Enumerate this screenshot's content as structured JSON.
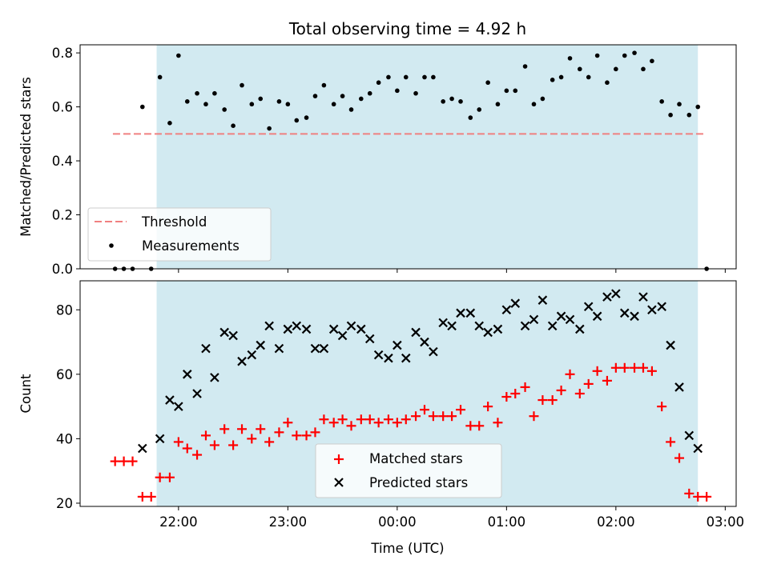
{
  "chart_data": {
    "title": "Total observing time = 4.92 h",
    "xlabel": "Time (UTC)",
    "x_ticks": [
      "22:00",
      "23:00",
      "00:00",
      "01:00",
      "02:00",
      "03:00"
    ],
    "x_tick_hours": [
      22,
      23,
      24,
      25,
      26,
      27
    ],
    "x_range_hours": [
      21.1,
      27.1
    ],
    "observing_window_hours": [
      21.8,
      26.75
    ],
    "colors": {
      "window": "#add8e6",
      "threshold": "#f08080",
      "measure": "#000000",
      "matched": "#ff0000",
      "predicted": "#000000"
    },
    "panels": [
      {
        "type": "scatter",
        "ylabel": "Matched/Predicted stars",
        "ylim": [
          0,
          0.83
        ],
        "y_ticks": [
          0.0,
          0.2,
          0.4,
          0.6,
          0.8
        ],
        "y_tick_labels": [
          "0.0",
          "0.2",
          "0.4",
          "0.6",
          "0.8"
        ],
        "threshold": {
          "name": "Threshold",
          "x": [
            21.4,
            26.8
          ],
          "y": 0.5
        },
        "series": [
          {
            "name": "Measurements",
            "x": [
              21.42,
              21.5,
              21.58,
              21.67,
              21.75,
              21.83,
              21.92,
              22.0,
              22.08,
              22.17,
              22.25,
              22.33,
              22.42,
              22.5,
              22.58,
              22.67,
              22.75,
              22.83,
              22.92,
              23.0,
              23.08,
              23.17,
              23.25,
              23.33,
              23.42,
              23.5,
              23.58,
              23.67,
              23.75,
              23.83,
              23.92,
              24.0,
              24.08,
              24.17,
              24.25,
              24.33,
              24.42,
              24.5,
              24.58,
              24.67,
              24.75,
              24.83,
              24.92,
              25.0,
              25.08,
              25.17,
              25.25,
              25.33,
              25.42,
              25.5,
              25.58,
              25.67,
              25.75,
              25.83,
              25.92,
              26.0,
              26.08,
              26.17,
              26.25,
              26.33,
              26.42,
              26.5,
              26.58,
              26.67,
              26.75,
              26.83
            ],
            "y": [
              0.0,
              0.0,
              0.0,
              0.6,
              0.0,
              0.71,
              0.54,
              0.79,
              0.62,
              0.65,
              0.61,
              0.65,
              0.59,
              0.53,
              0.68,
              0.61,
              0.63,
              0.52,
              0.62,
              0.61,
              0.55,
              0.56,
              0.64,
              0.68,
              0.61,
              0.64,
              0.59,
              0.63,
              0.65,
              0.69,
              0.71,
              0.66,
              0.71,
              0.65,
              0.71,
              0.71,
              0.62,
              0.63,
              0.62,
              0.56,
              0.59,
              0.69,
              0.61,
              0.66,
              0.66,
              0.75,
              0.61,
              0.63,
              0.7,
              0.71,
              0.78,
              0.74,
              0.71,
              0.79,
              0.69,
              0.74,
              0.79,
              0.8,
              0.74,
              0.77,
              0.62,
              0.57,
              0.61,
              0.57,
              0.6,
              0.0
            ]
          }
        ],
        "legend": "lower-left"
      },
      {
        "type": "scatter",
        "ylabel": "Count",
        "ylim": [
          19,
          89
        ],
        "y_ticks": [
          20,
          40,
          60,
          80
        ],
        "y_tick_labels": [
          "20",
          "40",
          "60",
          "80"
        ],
        "series": [
          {
            "name": "Matched stars",
            "marker": "plus",
            "x": [
              21.42,
              21.5,
              21.58,
              21.67,
              21.75,
              21.83,
              21.92,
              22.0,
              22.08,
              22.17,
              22.25,
              22.33,
              22.42,
              22.5,
              22.58,
              22.67,
              22.75,
              22.83,
              22.92,
              23.0,
              23.08,
              23.17,
              23.25,
              23.33,
              23.42,
              23.5,
              23.58,
              23.67,
              23.75,
              23.83,
              23.92,
              24.0,
              24.08,
              24.17,
              24.25,
              24.33,
              24.42,
              24.5,
              24.58,
              24.67,
              24.75,
              24.83,
              24.92,
              25.0,
              25.08,
              25.17,
              25.25,
              25.33,
              25.42,
              25.5,
              25.58,
              25.67,
              25.75,
              25.83,
              25.92,
              26.0,
              26.08,
              26.17,
              26.25,
              26.33,
              26.42,
              26.5,
              26.58,
              26.67,
              26.75,
              26.83
            ],
            "y": [
              33,
              33,
              33,
              22,
              22,
              28,
              28,
              39,
              37,
              35,
              41,
              38,
              43,
              38,
              43,
              40,
              43,
              39,
              42,
              45,
              41,
              41,
              42,
              46,
              45,
              46,
              44,
              46,
              46,
              45,
              46,
              45,
              46,
              47,
              49,
              47,
              47,
              47,
              49,
              44,
              44,
              50,
              45,
              53,
              54,
              56,
              47,
              52,
              52,
              55,
              60,
              54,
              57,
              61,
              58,
              62,
              62,
              62,
              62,
              61,
              50,
              39,
              34,
              23,
              22,
              22
            ]
          },
          {
            "name": "Predicted stars",
            "marker": "x",
            "x": [
              21.67,
              21.83,
              21.92,
              22.0,
              22.08,
              22.17,
              22.25,
              22.33,
              22.42,
              22.5,
              22.58,
              22.67,
              22.75,
              22.83,
              22.92,
              23.0,
              23.08,
              23.17,
              23.25,
              23.33,
              23.42,
              23.5,
              23.58,
              23.67,
              23.75,
              23.83,
              23.92,
              24.0,
              24.08,
              24.17,
              24.25,
              24.33,
              24.42,
              24.5,
              24.58,
              24.67,
              24.75,
              24.83,
              24.92,
              25.0,
              25.08,
              25.17,
              25.25,
              25.33,
              25.42,
              25.5,
              25.58,
              25.67,
              25.75,
              25.83,
              25.92,
              26.0,
              26.08,
              26.17,
              26.25,
              26.33,
              26.42,
              26.5,
              26.58,
              26.67,
              26.75
            ],
            "y": [
              37,
              40,
              52,
              50,
              60,
              54,
              68,
              59,
              73,
              72,
              64,
              66,
              69,
              75,
              68,
              74,
              75,
              74,
              68,
              68,
              74,
              72,
              75,
              74,
              71,
              66,
              65,
              69,
              65,
              73,
              70,
              67,
              76,
              75,
              79,
              79,
              75,
              73,
              74,
              80,
              82,
              75,
              77,
              83,
              75,
              78,
              77,
              74,
              81,
              78,
              84,
              85,
              79,
              78,
              84,
              80,
              81,
              69,
              56,
              41,
              37
            ]
          }
        ],
        "legend": "lower-center"
      }
    ]
  }
}
